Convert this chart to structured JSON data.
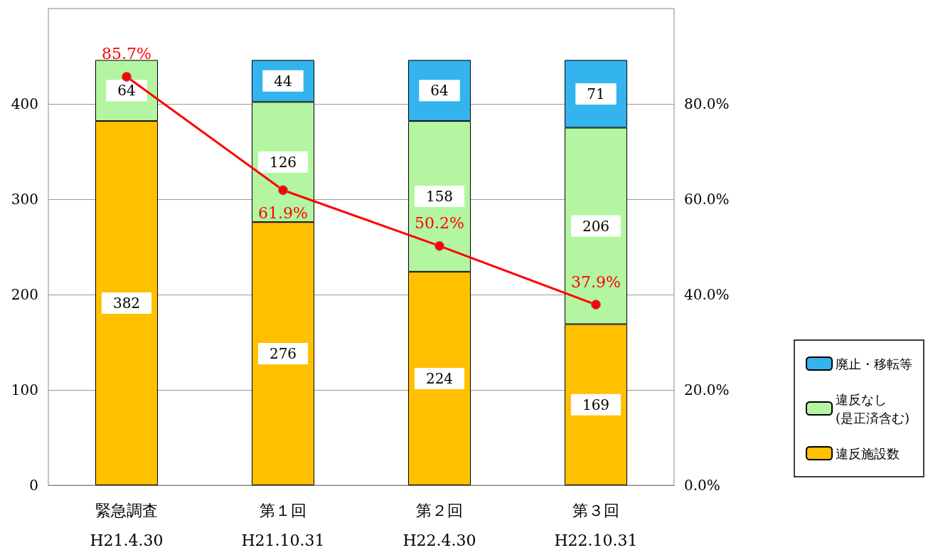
{
  "chart_data": {
    "type": "bar",
    "stacked": true,
    "categories": [
      "緊急調査\nH21.4.30",
      "第１回\nH21.10.31",
      "第２回\nH22.4.30",
      "第３回\nH22.10.31"
    ],
    "series": [
      {
        "name": "違反施設数",
        "color": "#ffc000",
        "values": [
          382,
          276,
          224,
          169
        ]
      },
      {
        "name": "違反なし\n(是正済含む)",
        "color": "#b3f5a0",
        "values": [
          64,
          126,
          158,
          206
        ]
      },
      {
        "name": "廃止・移転等",
        "color": "#33b4ee",
        "values": [
          null,
          44,
          64,
          71
        ]
      },
      {
        "type": "line",
        "axis": "y2",
        "color": "#ff0000",
        "values": [
          85.7,
          61.9,
          50.2,
          37.9
        ],
        "value_labels": [
          "85.7%",
          "61.9%",
          "50.2%",
          "37.9%"
        ]
      }
    ],
    "data_labels": true,
    "marker": "circle",
    "grid": "y",
    "legend": "right",
    "ylim": [
      0,
      500
    ],
    "yticks": [
      0,
      100,
      200,
      300,
      400
    ],
    "y2lim": [
      0,
      100
    ],
    "y2ticks": [
      {
        "value": 0,
        "label": "0.0%"
      },
      {
        "value": 20,
        "label": "20.0%"
      },
      {
        "value": 40,
        "label": "40.0%"
      },
      {
        "value": 60,
        "label": "60.0%"
      },
      {
        "value": 80,
        "label": "80.0%"
      }
    ]
  }
}
